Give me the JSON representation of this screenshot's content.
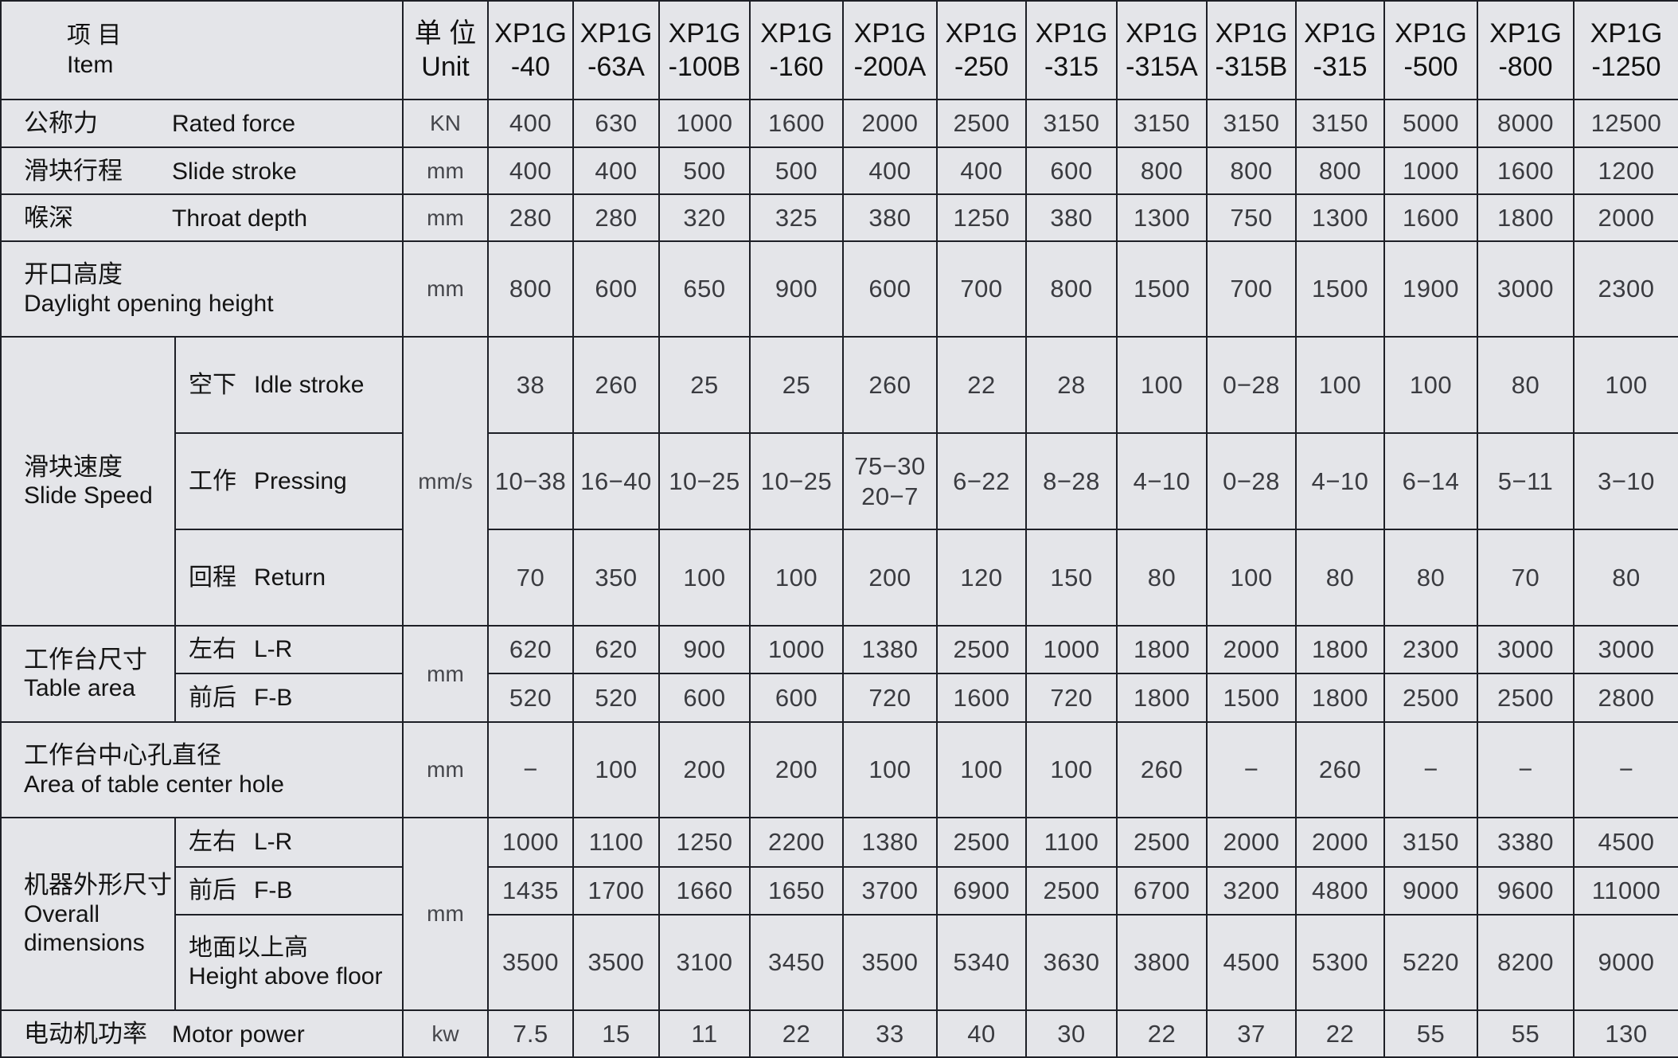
{
  "header": {
    "item_zh": "项 目",
    "item_en": "Item",
    "unit_zh": "单 位",
    "unit_en": "Unit",
    "models": [
      [
        "XP1G",
        "-40"
      ],
      [
        "XP1G",
        "-63A"
      ],
      [
        "XP1G",
        "-100B"
      ],
      [
        "XP1G",
        "-160"
      ],
      [
        "XP1G",
        "-200A"
      ],
      [
        "XP1G",
        "-250"
      ],
      [
        "XP1G",
        "-315"
      ],
      [
        "XP1G",
        "-315A"
      ],
      [
        "XP1G",
        "-315B"
      ],
      [
        "XP1G",
        "-315"
      ],
      [
        "XP1G",
        "-500"
      ],
      [
        "XP1G",
        "-800"
      ],
      [
        "XP1G",
        "-1250"
      ]
    ]
  },
  "rows": [
    {
      "zh": "公称力",
      "en": "Rated force",
      "unit": "KN",
      "values": [
        "400",
        "630",
        "1000",
        "1600",
        "2000",
        "2500",
        "3150",
        "3150",
        "3150",
        "3150",
        "5000",
        "8000",
        "12500"
      ]
    },
    {
      "zh": "滑块行程",
      "en": "Slide stroke",
      "unit": "mm",
      "values": [
        "400",
        "400",
        "500",
        "500",
        "400",
        "400",
        "600",
        "800",
        "800",
        "800",
        "1000",
        "1600",
        "1200"
      ]
    },
    {
      "zh": "喉深",
      "en": "Throat depth",
      "unit": "mm",
      "values": [
        "280",
        "280",
        "320",
        "325",
        "380",
        "1250",
        "380",
        "1300",
        "750",
        "1300",
        "1600",
        "1800",
        "2000"
      ]
    },
    {
      "zh": "开口高度",
      "en": "Daylight opening height",
      "unit": "mm",
      "values": [
        "800",
        "600",
        "650",
        "900",
        "600",
        "700",
        "800",
        "1500",
        "700",
        "1500",
        "1900",
        "3000",
        "2300"
      ]
    }
  ],
  "slide_speed": {
    "zh": "滑块速度",
    "en": "Slide Speed",
    "unit": "mm/s",
    "subs": [
      {
        "zh": "空下",
        "en": "Idle stroke",
        "values": [
          "38",
          "260",
          "25",
          "25",
          "260",
          "22",
          "28",
          "100",
          "0−28",
          "100",
          "100",
          "80",
          "100"
        ]
      },
      {
        "zh": "工作",
        "en": "Pressing",
        "values": [
          "10−38",
          "16−40",
          "10−25",
          "10−25",
          "75−30 20−7",
          "6−22",
          "8−28",
          "4−10",
          "0−28",
          "4−10",
          "6−14",
          "5−11",
          "3−10"
        ]
      },
      {
        "zh": "回程",
        "en": "Return",
        "values": [
          "70",
          "350",
          "100",
          "100",
          "200",
          "120",
          "150",
          "80",
          "100",
          "80",
          "80",
          "70",
          "80"
        ]
      }
    ]
  },
  "table_area": {
    "zh": "工作台尺寸",
    "en": "Table area",
    "unit": "mm",
    "subs": [
      {
        "zh": "左右",
        "en": "L-R",
        "values": [
          "620",
          "620",
          "900",
          "1000",
          "1380",
          "2500",
          "1000",
          "1800",
          "2000",
          "1800",
          "2300",
          "3000",
          "3000"
        ]
      },
      {
        "zh": "前后",
        "en": "F-B",
        "values": [
          "520",
          "520",
          "600",
          "600",
          "720",
          "1600",
          "720",
          "1800",
          "1500",
          "1800",
          "2500",
          "2500",
          "2800"
        ]
      }
    ]
  },
  "center_hole": {
    "zh": "工作台中心孔直径",
    "en": "Area of table center hole",
    "unit": "mm",
    "values": [
      "−",
      "100",
      "200",
      "200",
      "100",
      "100",
      "100",
      "260",
      "−",
      "260",
      "−",
      "−",
      "−"
    ]
  },
  "overall": {
    "zh": "机器外形尺寸",
    "en": "Overall dimensions",
    "unit": "mm",
    "subs": [
      {
        "zh": "左右",
        "en": "L-R",
        "values": [
          "1000",
          "1100",
          "1250",
          "2200",
          "1380",
          "2500",
          "1100",
          "2500",
          "2000",
          "2000",
          "3150",
          "3380",
          "4500"
        ]
      },
      {
        "zh": "前后",
        "en": "F-B",
        "values": [
          "1435",
          "1700",
          "1660",
          "1650",
          "3700",
          "6900",
          "2500",
          "6700",
          "3200",
          "4800",
          "9000",
          "9600",
          "11000"
        ]
      },
      {
        "zh": "地面以上高",
        "en": "Height above floor",
        "values": [
          "3500",
          "3500",
          "3100",
          "3450",
          "3500",
          "5340",
          "3630",
          "3800",
          "4500",
          "5300",
          "5220",
          "8200",
          "9000"
        ]
      }
    ]
  },
  "motor": {
    "zh": "电动机功率",
    "en": "Motor power",
    "unit": "kw",
    "values": [
      "7.5",
      "15",
      "11",
      "22",
      "33",
      "40",
      "30",
      "22",
      "37",
      "22",
      "55",
      "55",
      "130"
    ]
  }
}
